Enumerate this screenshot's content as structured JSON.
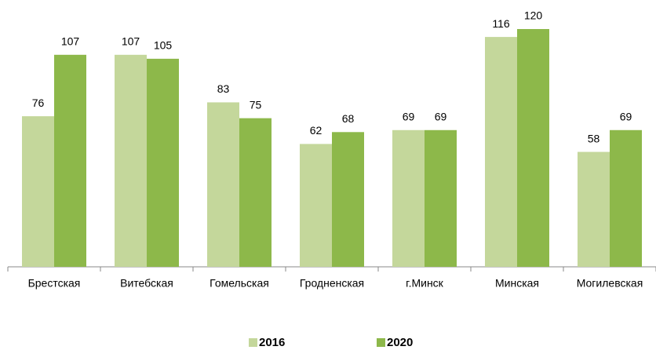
{
  "chart_data": {
    "type": "bar",
    "categories": [
      "Брестская",
      "Витебская",
      "Гомельская",
      "Гродненская",
      "г.Минск",
      "Минская",
      "Могилевская"
    ],
    "series": [
      {
        "name": "2016",
        "color": "#c4d79b",
        "values": [
          76,
          107,
          83,
          62,
          69,
          116,
          58
        ]
      },
      {
        "name": "2020",
        "color": "#8db84a",
        "values": [
          107,
          105,
          75,
          68,
          69,
          120,
          69
        ]
      }
    ],
    "ylim": [
      0,
      134
    ],
    "legend": "bottom"
  }
}
